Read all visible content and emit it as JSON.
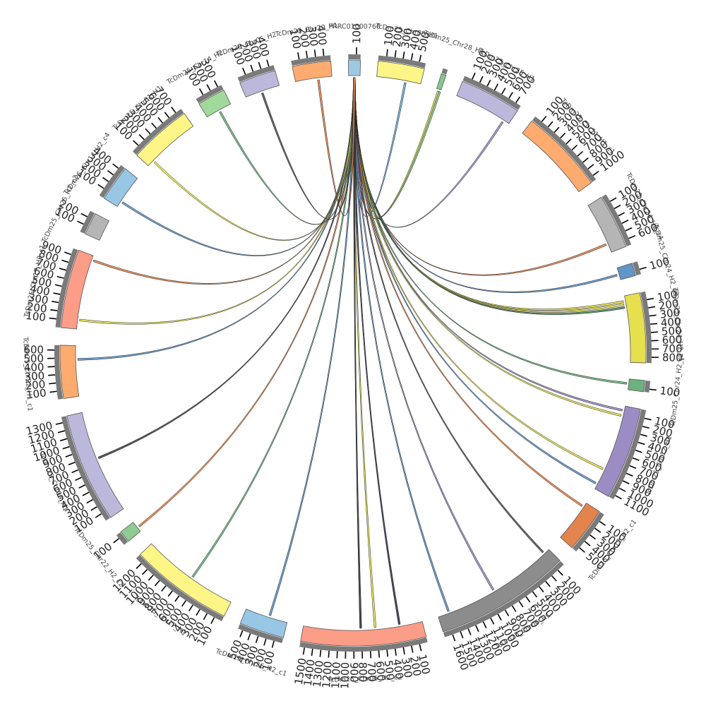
{
  "chart_data": {
    "type": "chord",
    "title": "",
    "segments": [
      {
        "name": "PRRC01000760",
        "length": 150,
        "color": "#9ecae1",
        "ticks": [
          100
        ]
      },
      {
        "name": "TcDm25_Chr05_H1",
        "length": 580,
        "color": "#fef587",
        "ticks": [
          100,
          200,
          300,
          400,
          500
        ]
      },
      {
        "name": "TcDm25_Chr28_H1",
        "length": 60,
        "color": "#86c78f",
        "ticks": []
      },
      {
        "name": "TcDm25_Chr25_H1",
        "length": 770,
        "color": "#bcb8dc",
        "ticks": [
          100,
          200,
          300,
          400,
          500,
          600,
          700
        ]
      },
      {
        "name": "TcDm25_Chr11_H1_c1",
        "length": 1060,
        "color": "#fdab6f",
        "ticks": [
          100,
          200,
          300,
          400,
          500,
          600,
          700,
          800,
          900,
          1000
        ]
      },
      {
        "name": "TcDm25_Chr24_H2_c4",
        "length": 680,
        "color": "#b5b5b5",
        "ticks": [
          100,
          200,
          300,
          400,
          500,
          600
        ]
      },
      {
        "name": "TcDm25_Chr24_H2_c3",
        "length": 160,
        "color": "#6096c8",
        "ticks": [
          100
        ]
      },
      {
        "name": "TcDm25_Chr24_H2_c1",
        "length": 870,
        "color": "#e6df4e",
        "ticks": [
          100,
          200,
          300,
          400,
          500,
          600,
          700,
          800
        ]
      },
      {
        "name": "TcDm25_Chr24_H2_c2",
        "length": 140,
        "color": "#6eb27f",
        "ticks": [
          100
        ]
      },
      {
        "name": "TcDm25_Chr12_H1",
        "length": 1150,
        "color": "#9b8dc3",
        "ticks": [
          100,
          200,
          300,
          400,
          500,
          600,
          700,
          800,
          900,
          1000,
          1100
        ]
      },
      {
        "name": "TcDm25_Chr12_H2_c1",
        "length": 560,
        "color": "#e3834e",
        "ticks": [
          100,
          200,
          300,
          400,
          500
        ]
      },
      {
        "name": "TcDm25_Chr06_H1",
        "length": 1700,
        "color": "#8c8c8c",
        "ticks": [
          100,
          200,
          300,
          400,
          500,
          600,
          700,
          800,
          900,
          1000,
          1100,
          1200,
          1300,
          1400,
          1500,
          1600
        ]
      },
      {
        "name": "TcDm25_Chr06_H2_c2",
        "length": 1560,
        "color": "#fc9d87",
        "ticks": [
          100,
          200,
          300,
          400,
          500,
          600,
          700,
          800,
          900,
          1000,
          1100,
          1200,
          1300,
          1400,
          1500
        ]
      },
      {
        "name": "TcDm25_Chr26_H2_c1",
        "length": 560,
        "color": "#97c7e4",
        "ticks": [
          100,
          200,
          300,
          400,
          500
        ]
      },
      {
        "name": "TcDm25_Chr17_H1",
        "length": 1290,
        "color": "#fef587",
        "ticks": [
          100,
          200,
          300,
          400,
          500,
          600,
          700,
          800,
          900,
          1000,
          1100,
          1200
        ]
      },
      {
        "name": "TcDm25_Chr22_H2_c2",
        "length": 150,
        "color": "#8fcc92",
        "ticks": [
          100
        ]
      },
      {
        "name": "TcDm25_Chr09_H1",
        "length": 1370,
        "color": "#bcb8dc",
        "ticks": [
          100,
          200,
          300,
          400,
          500,
          600,
          700,
          800,
          900,
          1000,
          1100,
          1200,
          1300
        ]
      },
      {
        "name": "TcDm25_Chr22_H1_c1",
        "length": 660,
        "color": "#fdab6f",
        "ticks": [
          100,
          200,
          300,
          400,
          500,
          600
        ]
      },
      {
        "name": "TcDm25_Chr17_H2_c1",
        "length": 980,
        "color": "#fc9d87",
        "ticks": [
          100,
          200,
          300,
          400,
          500,
          600,
          700,
          800,
          900
        ]
      },
      {
        "name": "TcDm25_Chr25_H2_c2",
        "length": 280,
        "color": "#b5b5b5",
        "ticks": [
          100,
          200
        ]
      },
      {
        "name": "TcDm25_Chr14_H2_c4",
        "length": 450,
        "color": "#97c7e4",
        "ticks": [
          100,
          200,
          300,
          400
        ]
      },
      {
        "name": "TcDm25_Chr01_H1",
        "length": 780,
        "color": "#fef587",
        "ticks": [
          100,
          200,
          300,
          400,
          500,
          600,
          700
        ]
      },
      {
        "name": "TcDm25_Chr14_H2",
        "length": 350,
        "color": "#a1d99b",
        "ticks": [
          100,
          200,
          300
        ]
      },
      {
        "name": "TcDm25_Chr05_H2",
        "length": 460,
        "color": "#bcb8dc",
        "ticks": [
          100,
          200,
          300,
          400
        ]
      },
      {
        "name": "TcDm25_Chr20_H1",
        "length": 480,
        "color": "#fdab6f",
        "ticks": [
          100,
          200,
          300,
          400
        ]
      }
    ],
    "links": [
      {
        "source": "PRRC01000760",
        "from": 20,
        "to": 130,
        "target": "TcDm25_Chr05_H1",
        "at": 380,
        "color": "#6fa8dc"
      },
      {
        "source": "PRRC01000760",
        "from": 20,
        "to": 130,
        "target": "TcDm25_Chr28_H1",
        "at": 30,
        "color": "#e6df4e"
      },
      {
        "source": "PRRC01000760",
        "from": 20,
        "to": 130,
        "target": "TcDm25_Chr28_H1",
        "at": 50,
        "color": "#86c78f"
      },
      {
        "source": "PRRC01000760",
        "from": 20,
        "to": 130,
        "target": "TcDm25_Chr25_H1",
        "at": 690,
        "color": "#9b8dc3"
      },
      {
        "source": "PRRC01000760",
        "from": 20,
        "to": 130,
        "target": "TcDm25_Chr24_H2_c4",
        "at": 560,
        "color": "#e3834e"
      },
      {
        "source": "PRRC01000760",
        "from": 20,
        "to": 130,
        "target": "TcDm25_Chr24_H2_c3",
        "at": 90,
        "color": "#6096c8"
      },
      {
        "source": "PRRC01000760",
        "from": 20,
        "to": 130,
        "target": "TcDm25_Chr24_H2_c1",
        "at": 70,
        "color": "#e6df4e"
      },
      {
        "source": "PRRC01000760",
        "from": 20,
        "to": 130,
        "target": "TcDm25_Chr24_H2_c1",
        "at": 110,
        "color": "#e6df4e"
      },
      {
        "source": "PRRC01000760",
        "from": 20,
        "to": 130,
        "target": "TcDm25_Chr24_H2_c1",
        "at": 150,
        "color": "#4a8c5a"
      },
      {
        "source": "PRRC01000760",
        "from": 20,
        "to": 130,
        "target": "TcDm25_Chr24_H2_c2",
        "at": 60,
        "color": "#6eb27f"
      },
      {
        "source": "PRRC01000760",
        "from": 20,
        "to": 130,
        "target": "TcDm25_Chr12_H1",
        "at": 60,
        "color": "#9b8dc3"
      },
      {
        "source": "PRRC01000760",
        "from": 20,
        "to": 130,
        "target": "TcDm25_Chr12_H1",
        "at": 130,
        "color": "#e6df4e"
      },
      {
        "source": "PRRC01000760",
        "from": 20,
        "to": 130,
        "target": "TcDm25_Chr12_H1",
        "at": 870,
        "color": "#e6df4e"
      },
      {
        "source": "PRRC01000760",
        "from": 20,
        "to": 130,
        "target": "TcDm25_Chr12_H1",
        "at": 1080,
        "color": "#6096c8"
      },
      {
        "source": "PRRC01000760",
        "from": 20,
        "to": 130,
        "target": "TcDm25_Chr12_H2_c1",
        "at": 60,
        "color": "#e3834e"
      },
      {
        "source": "PRRC01000760",
        "from": 20,
        "to": 130,
        "target": "TcDm25_Chr06_H1",
        "at": 80,
        "color": "#555555"
      },
      {
        "source": "PRRC01000760",
        "from": 20,
        "to": 130,
        "target": "TcDm25_Chr06_H1",
        "at": 900,
        "color": "#9b8dc3"
      },
      {
        "source": "PRRC01000760",
        "from": 20,
        "to": 130,
        "target": "TcDm25_Chr06_H1",
        "at": 1550,
        "color": "#6096c8"
      },
      {
        "source": "PRRC01000760",
        "from": 20,
        "to": 130,
        "target": "TcDm25_Chr06_H2_c2",
        "at": 300,
        "color": "#333355"
      },
      {
        "source": "PRRC01000760",
        "from": 20,
        "to": 130,
        "target": "TcDm25_Chr06_H2_c2",
        "at": 620,
        "color": "#e6df4e"
      },
      {
        "source": "PRRC01000760",
        "from": 20,
        "to": 130,
        "target": "TcDm25_Chr06_H2_c2",
        "at": 810,
        "color": "#333333"
      },
      {
        "source": "PRRC01000760",
        "from": 20,
        "to": 130,
        "target": "TcDm25_Chr26_H2_c1",
        "at": 240,
        "color": "#6096c8"
      },
      {
        "source": "PRRC01000760",
        "from": 20,
        "to": 130,
        "target": "TcDm25_Chr17_H1",
        "at": 600,
        "color": "#6eb27f"
      },
      {
        "source": "PRRC01000760",
        "from": 20,
        "to": 130,
        "target": "TcDm25_Chr22_H2_c2",
        "at": 60,
        "color": "#e3834e"
      },
      {
        "source": "PRRC01000760",
        "from": 20,
        "to": 130,
        "target": "TcDm25_Chr09_H1",
        "at": 740,
        "color": "#444444"
      },
      {
        "source": "PRRC01000760",
        "from": 20,
        "to": 130,
        "target": "TcDm25_Chr22_H1_c1",
        "at": 480,
        "color": "#6096c8"
      },
      {
        "source": "PRRC01000760",
        "from": 20,
        "to": 130,
        "target": "TcDm25_Chr17_H2_c1",
        "at": 120,
        "color": "#e6df4e"
      },
      {
        "source": "PRRC01000760",
        "from": 20,
        "to": 130,
        "target": "TcDm25_Chr17_H2_c1",
        "at": 920,
        "color": "#e3834e"
      },
      {
        "source": "PRRC01000760",
        "from": 20,
        "to": 130,
        "target": "TcDm25_Chr14_H2_c4",
        "at": 80,
        "color": "#6096c8"
      },
      {
        "source": "PRRC01000760",
        "from": 20,
        "to": 130,
        "target": "TcDm25_Chr01_H1",
        "at": 90,
        "color": "#e6df4e"
      },
      {
        "source": "PRRC01000760",
        "from": 20,
        "to": 130,
        "target": "TcDm25_Chr14_H2",
        "at": 180,
        "color": "#6eb27f"
      },
      {
        "source": "PRRC01000760",
        "from": 20,
        "to": 130,
        "target": "TcDm25_Chr05_H2",
        "at": 220,
        "color": "#555555"
      },
      {
        "source": "PRRC01000760",
        "from": 20,
        "to": 130,
        "target": "TcDm25_Chr20_H1",
        "at": 300,
        "color": "#e3834e"
      }
    ]
  }
}
